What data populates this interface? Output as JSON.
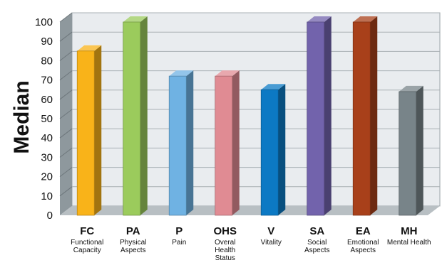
{
  "chart_data": {
    "type": "bar",
    "ylabel": "Median",
    "ylim": [
      0,
      100
    ],
    "yticks": [
      0,
      10,
      20,
      30,
      40,
      50,
      60,
      70,
      80,
      90,
      100
    ],
    "grid": true,
    "categories": [
      {
        "abbr": "FC",
        "label_lines": [
          "Functional",
          "Capacity"
        ],
        "value": 85,
        "color": "#F9B319"
      },
      {
        "abbr": "PA",
        "label_lines": [
          "Physical",
          "Aspects"
        ],
        "value": 100,
        "color": "#9BCB5C"
      },
      {
        "abbr": "P",
        "label_lines": [
          "Pain"
        ],
        "value": 72,
        "color": "#6FB2E3"
      },
      {
        "abbr": "OHS",
        "label_lines": [
          "Overal",
          "Health",
          "Status"
        ],
        "value": 72,
        "color": "#E08B93"
      },
      {
        "abbr": "V",
        "label_lines": [
          "Vitality"
        ],
        "value": 65,
        "color": "#0C79C4"
      },
      {
        "abbr": "SA",
        "label_lines": [
          "Social",
          "Aspects"
        ],
        "value": 100,
        "color": "#7263AC"
      },
      {
        "abbr": "EA",
        "label_lines": [
          "Emotional",
          "Aspects"
        ],
        "value": 100,
        "color": "#A8401A"
      },
      {
        "abbr": "MH",
        "label_lines": [
          "Mental Health"
        ],
        "value": 64,
        "color": "#788489"
      }
    ]
  }
}
